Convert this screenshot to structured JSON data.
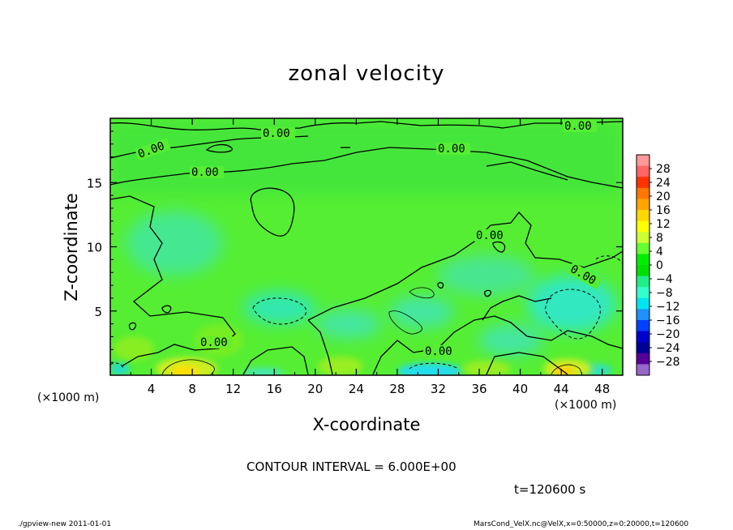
{
  "chart_data": {
    "type": "heatmap",
    "title": "zonal velocity",
    "xlabel": "X-coordinate",
    "ylabel": "Z-coordinate",
    "x_unit": "(×1000 m)",
    "y_unit": "(×1000 m)",
    "xlim": [
      0,
      50
    ],
    "ylim": [
      0,
      20
    ],
    "x_ticks": [
      "4",
      "8",
      "12",
      "16",
      "20",
      "24",
      "28",
      "32",
      "36",
      "40",
      "44",
      "48"
    ],
    "y_ticks": [
      "5",
      "10",
      "15"
    ],
    "contour_label": "0.00",
    "colorbar": {
      "labels": [
        "28",
        "24",
        "20",
        "16",
        "12",
        "8",
        "4",
        "0",
        "−4",
        "−8",
        "−12",
        "−16",
        "−20",
        "−24",
        "−28"
      ],
      "colors": [
        "#ff9999",
        "#ff6666",
        "#ff3300",
        "#ff7700",
        "#ffa500",
        "#ffd700",
        "#ffff00",
        "#ccff33",
        "#66ff33",
        "#00ee00",
        "#00e000",
        "#22ee88",
        "#33ffcc",
        "#00e6f0",
        "#1e90ff",
        "#0040ff",
        "#0000cc",
        "#000099",
        "#550099",
        "#9966cc"
      ]
    }
  },
  "contour_interval": "CONTOUR INTERVAL = 6.000E+00",
  "time_label": "t=120600  s",
  "footer": {
    "left": "./gpview-new   2011-01-01",
    "right": "MarsCond_VelX.nc@VelX,x=0:50000,z=0:20000,t=120600"
  }
}
